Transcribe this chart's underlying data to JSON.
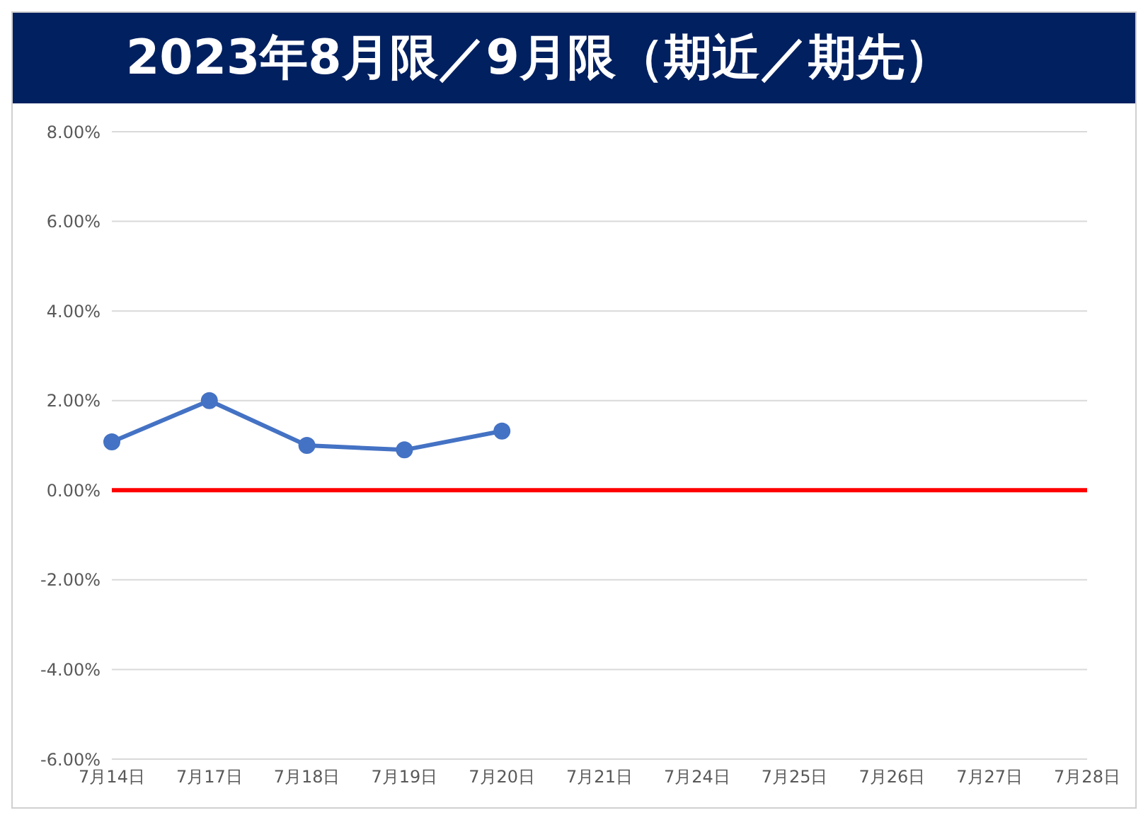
{
  "chart_data": {
    "type": "line",
    "title": "2023年8月限／9月限（期近／期先）",
    "categories": [
      "7月14日",
      "7月17日",
      "7月18日",
      "7月19日",
      "7月20日",
      "7月21日",
      "7月24日",
      "7月25日",
      "7月26日",
      "7月27日",
      "7月28日"
    ],
    "series": [
      {
        "color": "#4472c4",
        "values": [
          1.08,
          2.0,
          1.0,
          0.9,
          1.32,
          null,
          null,
          null,
          null,
          null,
          null
        ]
      }
    ],
    "ylim": [
      -6,
      8
    ],
    "yticks": [
      {
        "value": -6,
        "label": "-6.00%"
      },
      {
        "value": -4,
        "label": "-4.00%"
      },
      {
        "value": -2,
        "label": "-2.00%"
      },
      {
        "value": 0,
        "label": "0.00%"
      },
      {
        "value": 2,
        "label": "2.00%"
      },
      {
        "value": 4,
        "label": "4.00%"
      },
      {
        "value": 6,
        "label": "6.00%"
      },
      {
        "value": 8,
        "label": "8.00%"
      }
    ],
    "ref_lines": [
      {
        "axis": "y",
        "value": 0,
        "color": "#ff0000"
      }
    ],
    "grid": "y",
    "marker": "circle",
    "line_style": "solid"
  }
}
